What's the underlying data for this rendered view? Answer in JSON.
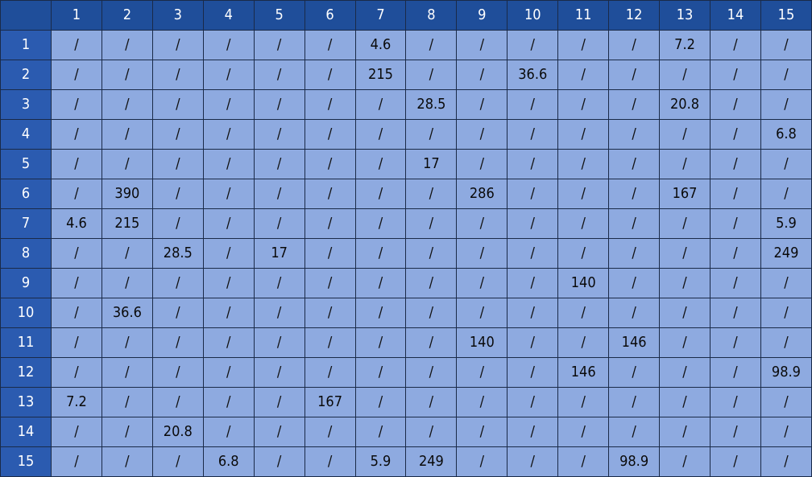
{
  "colors": {
    "header_bg": "#1f4e9a",
    "row_header_bg": "#2b5bb0",
    "cell_bg": "#8eaae0",
    "grid_line": "#1a2a48",
    "header_text": "#ffffff",
    "cell_text": "#111111"
  },
  "table": {
    "column_headers": [
      "1",
      "2",
      "3",
      "4",
      "5",
      "6",
      "7",
      "8",
      "9",
      "10",
      "11",
      "12",
      "13",
      "14",
      "15"
    ],
    "row_headers": [
      "1",
      "2",
      "3",
      "4",
      "5",
      "6",
      "7",
      "8",
      "9",
      "10",
      "11",
      "12",
      "13",
      "14",
      "15"
    ],
    "rows": [
      [
        "/",
        "/",
        "/",
        "/",
        "/",
        "/",
        "4.6",
        "/",
        "/",
        "/",
        "/",
        "/",
        "7.2",
        "/",
        "/"
      ],
      [
        "/",
        "/",
        "/",
        "/",
        "/",
        "/",
        "215",
        "/",
        "/",
        "36.6",
        "/",
        "/",
        "/",
        "/",
        "/"
      ],
      [
        "/",
        "/",
        "/",
        "/",
        "/",
        "/",
        "/",
        "28.5",
        "/",
        "/",
        "/",
        "/",
        "20.8",
        "/",
        "/"
      ],
      [
        "/",
        "/",
        "/",
        "/",
        "/",
        "/",
        "/",
        "/",
        "/",
        "/",
        "/",
        "/",
        "/",
        "/",
        "6.8"
      ],
      [
        "/",
        "/",
        "/",
        "/",
        "/",
        "/",
        "/",
        "17",
        "/",
        "/",
        "/",
        "/",
        "/",
        "/",
        "/"
      ],
      [
        "/",
        "390",
        "/",
        "/",
        "/",
        "/",
        "/",
        "/",
        "286",
        "/",
        "/",
        "/",
        "167",
        "/",
        "/"
      ],
      [
        "4.6",
        "215",
        "/",
        "/",
        "/",
        "/",
        "/",
        "/",
        "/",
        "/",
        "/",
        "/",
        "/",
        "/",
        "5.9"
      ],
      [
        "/",
        "/",
        "28.5",
        "/",
        "17",
        "/",
        "/",
        "/",
        "/",
        "/",
        "/",
        "/",
        "/",
        "/",
        "249"
      ],
      [
        "/",
        "/",
        "/",
        "/",
        "/",
        "/",
        "/",
        "/",
        "/",
        "/",
        "140",
        "/",
        "/",
        "/",
        "/"
      ],
      [
        "/",
        "36.6",
        "/",
        "/",
        "/",
        "/",
        "/",
        "/",
        "/",
        "/",
        "/",
        "/",
        "/",
        "/",
        "/"
      ],
      [
        "/",
        "/",
        "/",
        "/",
        "/",
        "/",
        "/",
        "/",
        "140",
        "/",
        "/",
        "146",
        "/",
        "/",
        "/"
      ],
      [
        "/",
        "/",
        "/",
        "/",
        "/",
        "/",
        "/",
        "/",
        "/",
        "/",
        "146",
        "/",
        "/",
        "/",
        "98.9"
      ],
      [
        "7.2",
        "/",
        "/",
        "/",
        "/",
        "167",
        "/",
        "/",
        "/",
        "/",
        "/",
        "/",
        "/",
        "/",
        "/"
      ],
      [
        "/",
        "/",
        "20.8",
        "/",
        "/",
        "/",
        "/",
        "/",
        "/",
        "/",
        "/",
        "/",
        "/",
        "/",
        "/"
      ],
      [
        "/",
        "/",
        "/",
        "6.8",
        "/",
        "/",
        "5.9",
        "249",
        "/",
        "/",
        "/",
        "98.9",
        "/",
        "/",
        "/"
      ]
    ]
  }
}
